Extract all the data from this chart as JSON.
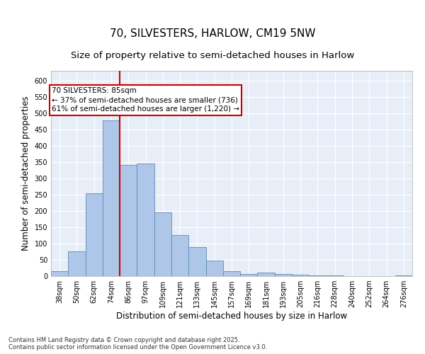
{
  "title_line1": "70, SILVESTERS, HARLOW, CM19 5NW",
  "title_line2": "Size of property relative to semi-detached houses in Harlow",
  "xlabel": "Distribution of semi-detached houses by size in Harlow",
  "ylabel": "Number of semi-detached properties",
  "categories": [
    "38sqm",
    "50sqm",
    "62sqm",
    "74sqm",
    "86sqm",
    "97sqm",
    "109sqm",
    "121sqm",
    "133sqm",
    "145sqm",
    "157sqm",
    "169sqm",
    "181sqm",
    "193sqm",
    "205sqm",
    "216sqm",
    "228sqm",
    "240sqm",
    "252sqm",
    "264sqm",
    "276sqm"
  ],
  "bar_values": [
    15,
    75,
    255,
    478,
    340,
    345,
    196,
    125,
    88,
    47,
    15,
    7,
    10,
    7,
    5,
    3,
    2,
    1,
    1,
    1,
    2
  ],
  "bar_color": "#aec6e8",
  "bar_edge_color": "#5b8db8",
  "vline_pos": 3.5,
  "vline_color": "#cc0000",
  "annotation_line1": "70 SILVESTERS: 85sqm",
  "annotation_line2": "← 37% of semi-detached houses are smaller (736)",
  "annotation_line3": "61% of semi-detached houses are larger (1,220) →",
  "annotation_box_color": "#ffffff",
  "annotation_box_edge_color": "#cc0000",
  "ylim": [
    0,
    630
  ],
  "yticks": [
    0,
    50,
    100,
    150,
    200,
    250,
    300,
    350,
    400,
    450,
    500,
    550,
    600
  ],
  "plot_bg_color": "#e8eef8",
  "grid_color": "#ffffff",
  "footer": "Contains HM Land Registry data © Crown copyright and database right 2025.\nContains public sector information licensed under the Open Government Licence v3.0.",
  "title1_fontsize": 11,
  "title2_fontsize": 9.5,
  "tick_fontsize": 7,
  "label_fontsize": 8.5,
  "annotation_fontsize": 7.5,
  "footer_fontsize": 6
}
